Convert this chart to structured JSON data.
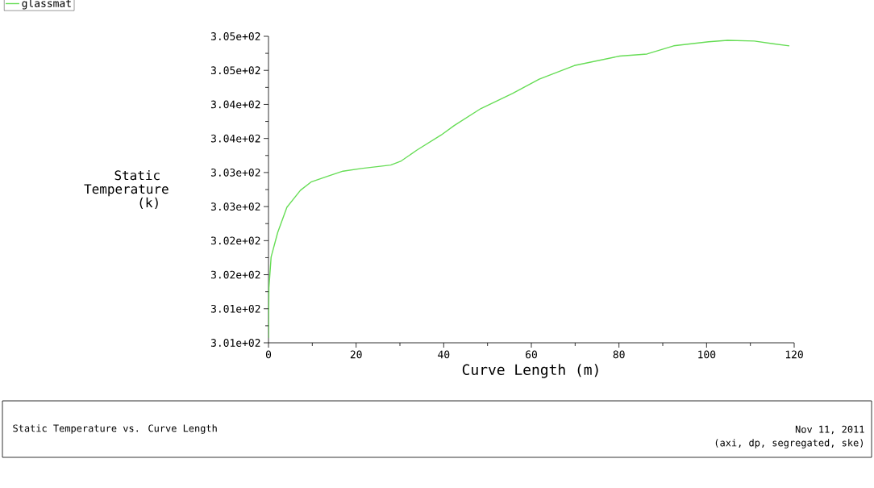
{
  "chart_data": {
    "type": "line",
    "xlabel": "Curve Length (m)",
    "ylabel": "Static Temperature (k)",
    "annotations": [
      "Static Temperature vs. Curve Length",
      "Nov 11, 2011",
      "(axi, dp, segregated, ske)"
    ],
    "x": [
      0,
      0.1,
      0.6,
      2.1,
      4.2,
      7.3,
      9.7,
      13.3,
      17,
      21.2,
      27.9,
      30.3,
      33.9,
      39.4,
      42.4,
      48.5,
      55.7,
      61.8,
      69.8,
      80.2,
      86.4,
      92.5,
      100.5,
      104.8,
      110.9,
      115.2,
      118.9
    ],
    "series": [
      {
        "name": "glassmat",
        "color": "#66dd55",
        "values": [
          300.57,
          301.31,
          301.76,
          302.12,
          302.49,
          302.74,
          302.86,
          302.94,
          303.02,
          303.06,
          303.11,
          303.17,
          303.33,
          303.55,
          303.69,
          303.94,
          304.16,
          304.37,
          304.57,
          304.71,
          304.74,
          304.86,
          304.92,
          304.94,
          304.93,
          304.89,
          304.86
        ]
      }
    ],
    "xlim": [
      0,
      120
    ],
    "xticks": [
      0,
      20,
      40,
      60,
      80,
      100,
      120
    ],
    "ylim": [
      300.5,
      305
    ],
    "yticks": [
      {
        "value": 300.5,
        "label": "3.01e+02"
      },
      {
        "value": 301,
        "label": "3.01e+02"
      },
      {
        "value": 301.5,
        "label": "3.02e+02"
      },
      {
        "value": 302,
        "label": "3.02e+02"
      },
      {
        "value": 302.5,
        "label": "3.03e+02"
      },
      {
        "value": 303,
        "label": "3.03e+02"
      },
      {
        "value": 303.5,
        "label": "3.04e+02"
      },
      {
        "value": 304,
        "label": "3.04e+02"
      },
      {
        "value": 304.5,
        "label": "3.05e+02"
      },
      {
        "value": 305,
        "label": "3.05e+02"
      }
    ],
    "grid": false,
    "legend": "top left",
    "marker": "none",
    "line_style": "solid"
  }
}
